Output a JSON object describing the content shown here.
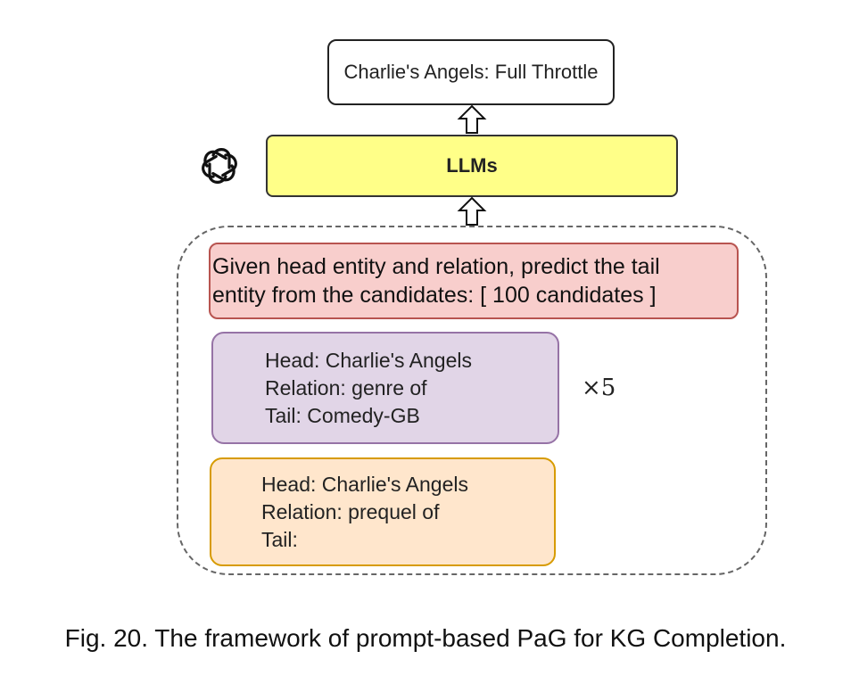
{
  "output": {
    "text": "Charlie's Angels: Full Throttle"
  },
  "model": {
    "label": "LLMs",
    "logo_icon": "openai-logo-icon"
  },
  "prompt": {
    "instruction_line1": "Given head entity and relation, predict the tail",
    "instruction_line2": "entity from the candidates: [ 100 candidates ]",
    "example": {
      "head": "Head: Charlie's Angels",
      "relation": "Relation: genre of",
      "tail": "Tail: Comedy-GB"
    },
    "repeat": "×5",
    "query": {
      "head": "Head: Charlie's Angels",
      "relation": "Relation: prequel of",
      "tail": "Tail:"
    }
  },
  "caption": "Fig. 20. The framework of prompt-based PaG for KG Completion.",
  "colors": {
    "llm_fill": "#ffff88",
    "instruction_fill": "#f8cecc",
    "instruction_border": "#b85450",
    "example_fill": "#e1d5e7",
    "example_border": "#9673a6",
    "query_fill": "#ffe6cc",
    "query_border": "#d79b00"
  }
}
